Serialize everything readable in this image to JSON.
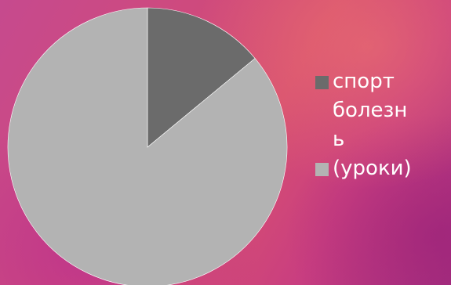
{
  "chart_data": {
    "type": "pie",
    "series": [
      {
        "name": "спорт",
        "value": 0.14,
        "color": "#6b6b6b"
      },
      {
        "name": "болезнь (уроки)",
        "value": 0.86,
        "color": "#b3b3b3"
      }
    ],
    "legend": {
      "position": "right",
      "items": [
        "спорт",
        "болезнь (уроки)"
      ],
      "wrapped_lines": [
        "болезн",
        "ь",
        "(уроки)"
      ]
    }
  }
}
